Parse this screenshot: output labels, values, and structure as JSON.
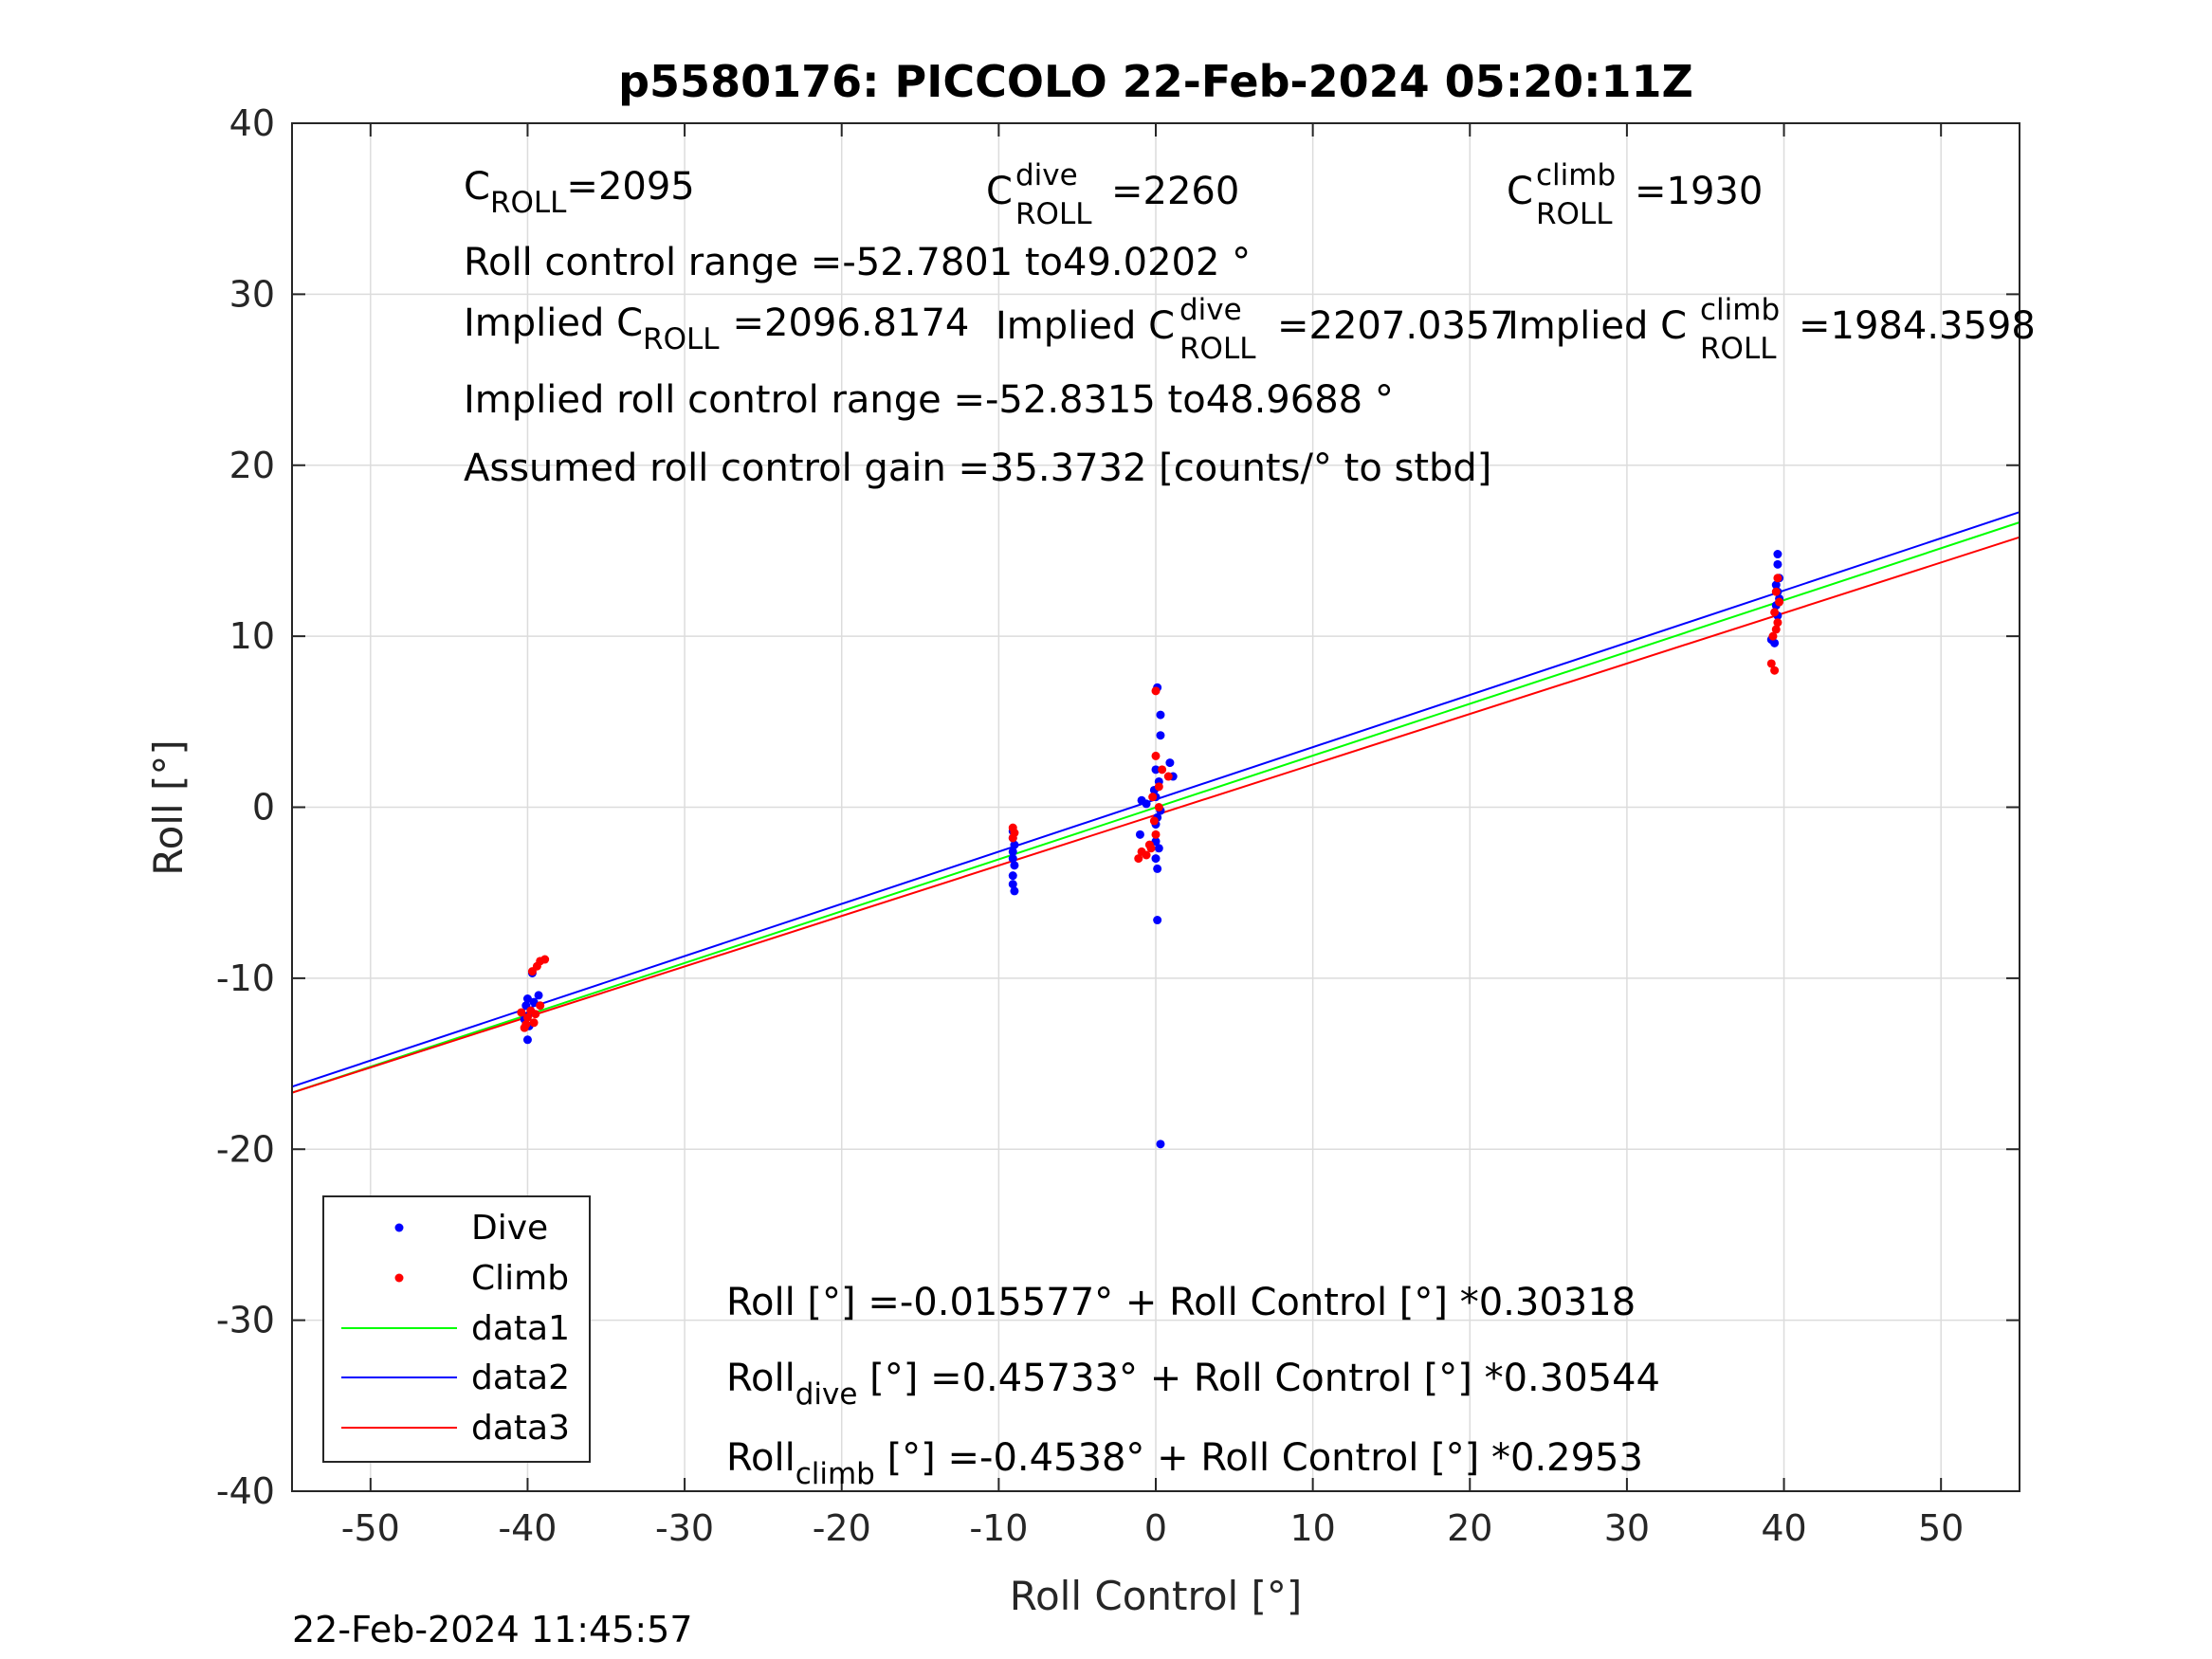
{
  "chart_data": {
    "type": "scatter",
    "title": "p5580176: PICCOLO 22-Feb-2024 05:20:11Z",
    "xlabel": "Roll Control [°]",
    "ylabel": "Roll [°]",
    "xlim": [
      -55,
      55
    ],
    "ylim": [
      -40,
      40
    ],
    "xticks": [
      -50,
      -40,
      -30,
      -20,
      -10,
      0,
      10,
      20,
      30,
      40,
      50
    ],
    "yticks": [
      -40,
      -30,
      -20,
      -10,
      0,
      10,
      20,
      30,
      40
    ],
    "grid": true,
    "legend_position": "bottom-left",
    "series": [
      {
        "name": "Dive",
        "kind": "scatter",
        "color": "#0000ff",
        "points": [
          [
            -40.0,
            -11.2
          ],
          [
            -40.1,
            -11.6
          ],
          [
            -39.8,
            -12.0
          ],
          [
            -40.2,
            -12.4
          ],
          [
            -39.9,
            -12.8
          ],
          [
            -40.0,
            -13.6
          ],
          [
            -39.6,
            -11.4
          ],
          [
            -39.3,
            -11.0
          ],
          [
            -40.0,
            -12.2
          ],
          [
            -39.7,
            -9.7
          ],
          [
            -9.1,
            -1.4
          ],
          [
            -9.1,
            -1.8
          ],
          [
            -9.0,
            -2.2
          ],
          [
            -9.1,
            -2.6
          ],
          [
            -9.1,
            -3.0
          ],
          [
            -9.0,
            -3.4
          ],
          [
            -9.1,
            -4.0
          ],
          [
            -9.1,
            -4.5
          ],
          [
            -9.0,
            -4.9
          ],
          [
            0.1,
            7.0
          ],
          [
            0.3,
            5.4
          ],
          [
            0.3,
            4.2
          ],
          [
            0.9,
            2.6
          ],
          [
            1.1,
            1.8
          ],
          [
            0.0,
            2.2
          ],
          [
            0.2,
            1.5
          ],
          [
            -0.1,
            1.0
          ],
          [
            0.0,
            0.6
          ],
          [
            -0.9,
            0.4
          ],
          [
            -0.6,
            0.2
          ],
          [
            0.3,
            -0.2
          ],
          [
            0.1,
            -0.6
          ],
          [
            0.0,
            -1.0
          ],
          [
            -1.0,
            -1.6
          ],
          [
            0.0,
            -2.0
          ],
          [
            0.2,
            -2.4
          ],
          [
            0.0,
            -3.0
          ],
          [
            0.1,
            -3.6
          ],
          [
            0.1,
            -6.6
          ],
          [
            0.3,
            -19.7
          ],
          [
            39.6,
            14.8
          ],
          [
            39.6,
            14.2
          ],
          [
            39.7,
            13.4
          ],
          [
            39.5,
            13.0
          ],
          [
            39.6,
            12.6
          ],
          [
            39.7,
            12.2
          ],
          [
            39.5,
            11.8
          ],
          [
            39.6,
            11.2
          ],
          [
            39.2,
            9.8
          ],
          [
            39.4,
            9.6
          ]
        ]
      },
      {
        "name": "Climb",
        "kind": "scatter",
        "color": "#ff0000",
        "points": [
          [
            -38.9,
            -8.9
          ],
          [
            -39.2,
            -9.0
          ],
          [
            -39.4,
            -9.3
          ],
          [
            -39.7,
            -9.6
          ],
          [
            -40.4,
            -12.0
          ],
          [
            -40.0,
            -12.3
          ],
          [
            -39.6,
            -12.6
          ],
          [
            -40.2,
            -12.9
          ],
          [
            -39.2,
            -11.6
          ],
          [
            -39.8,
            -11.9
          ],
          [
            -39.5,
            -12.1
          ],
          [
            -40.1,
            -12.7
          ],
          [
            -9.1,
            -1.2
          ],
          [
            -9.0,
            -1.5
          ],
          [
            -9.1,
            -1.8
          ],
          [
            0.0,
            6.8
          ],
          [
            0.0,
            3.0
          ],
          [
            0.4,
            2.2
          ],
          [
            0.8,
            1.8
          ],
          [
            0.2,
            1.2
          ],
          [
            -0.2,
            0.6
          ],
          [
            0.2,
            0.0
          ],
          [
            -0.1,
            -0.8
          ],
          [
            0.0,
            -1.6
          ],
          [
            -0.3,
            -2.4
          ],
          [
            -0.6,
            -2.8
          ],
          [
            -0.9,
            -2.6
          ],
          [
            -1.1,
            -3.0
          ],
          [
            -0.4,
            -2.2
          ],
          [
            39.6,
            13.4
          ],
          [
            39.5,
            12.6
          ],
          [
            39.7,
            12.0
          ],
          [
            39.4,
            11.4
          ],
          [
            39.6,
            10.8
          ],
          [
            39.5,
            10.4
          ],
          [
            39.3,
            10.0
          ],
          [
            39.2,
            8.4
          ],
          [
            39.4,
            8.0
          ]
        ]
      },
      {
        "name": "data1",
        "kind": "line",
        "color": "#00ff00",
        "intercept": -0.015577,
        "slope": 0.30318
      },
      {
        "name": "data2",
        "kind": "line",
        "color": "#0000ff",
        "intercept": 0.45733,
        "slope": 0.30544
      },
      {
        "name": "data3",
        "kind": "line",
        "color": "#ff0000",
        "intercept": -0.4538,
        "slope": 0.2953
      }
    ],
    "annotations": {
      "c_roll": {
        "main": "C",
        "sub": "ROLL",
        "value": "=2095"
      },
      "c_roll_dive": {
        "main": "C",
        "sup": "dive",
        "sub": "ROLL",
        "value": "=2260"
      },
      "c_roll_climb": {
        "main": "C",
        "sup": "climb",
        "sub": "ROLL",
        "value": "=1930"
      },
      "control_range": "Roll control range =-52.7801 to49.0202 °",
      "implied_c_roll": {
        "prefix": "Implied C",
        "sub": "ROLL",
        "value": "=2096.8174"
      },
      "implied_c_roll_dive": {
        "prefix": "Implied C",
        "sup": "dive",
        "sub": "ROLL",
        "value": "=2207.0357"
      },
      "implied_c_roll_climb": {
        "prefix": "Implied C",
        "sup": "climb",
        "sub": "ROLL",
        "value": "=1984.3598"
      },
      "implied_range": "Implied roll control range =-52.8315 to48.9688 °",
      "gain": "Assumed roll control gain =35.3732 [counts/° to stbd]",
      "fit_all": "Roll [°] =-0.015577° + Roll Control [°] *0.30318",
      "fit_dive": {
        "prefix": "Roll",
        "sub": "dive",
        "rest": " [°] =0.45733° + Roll Control [°] *0.30544"
      },
      "fit_climb": {
        "prefix": "Roll",
        "sub": "climb",
        "rest": " [°] =-0.4538° + Roll Control [°] *0.2953"
      }
    },
    "footer_timestamp": "22-Feb-2024 11:45:57"
  }
}
